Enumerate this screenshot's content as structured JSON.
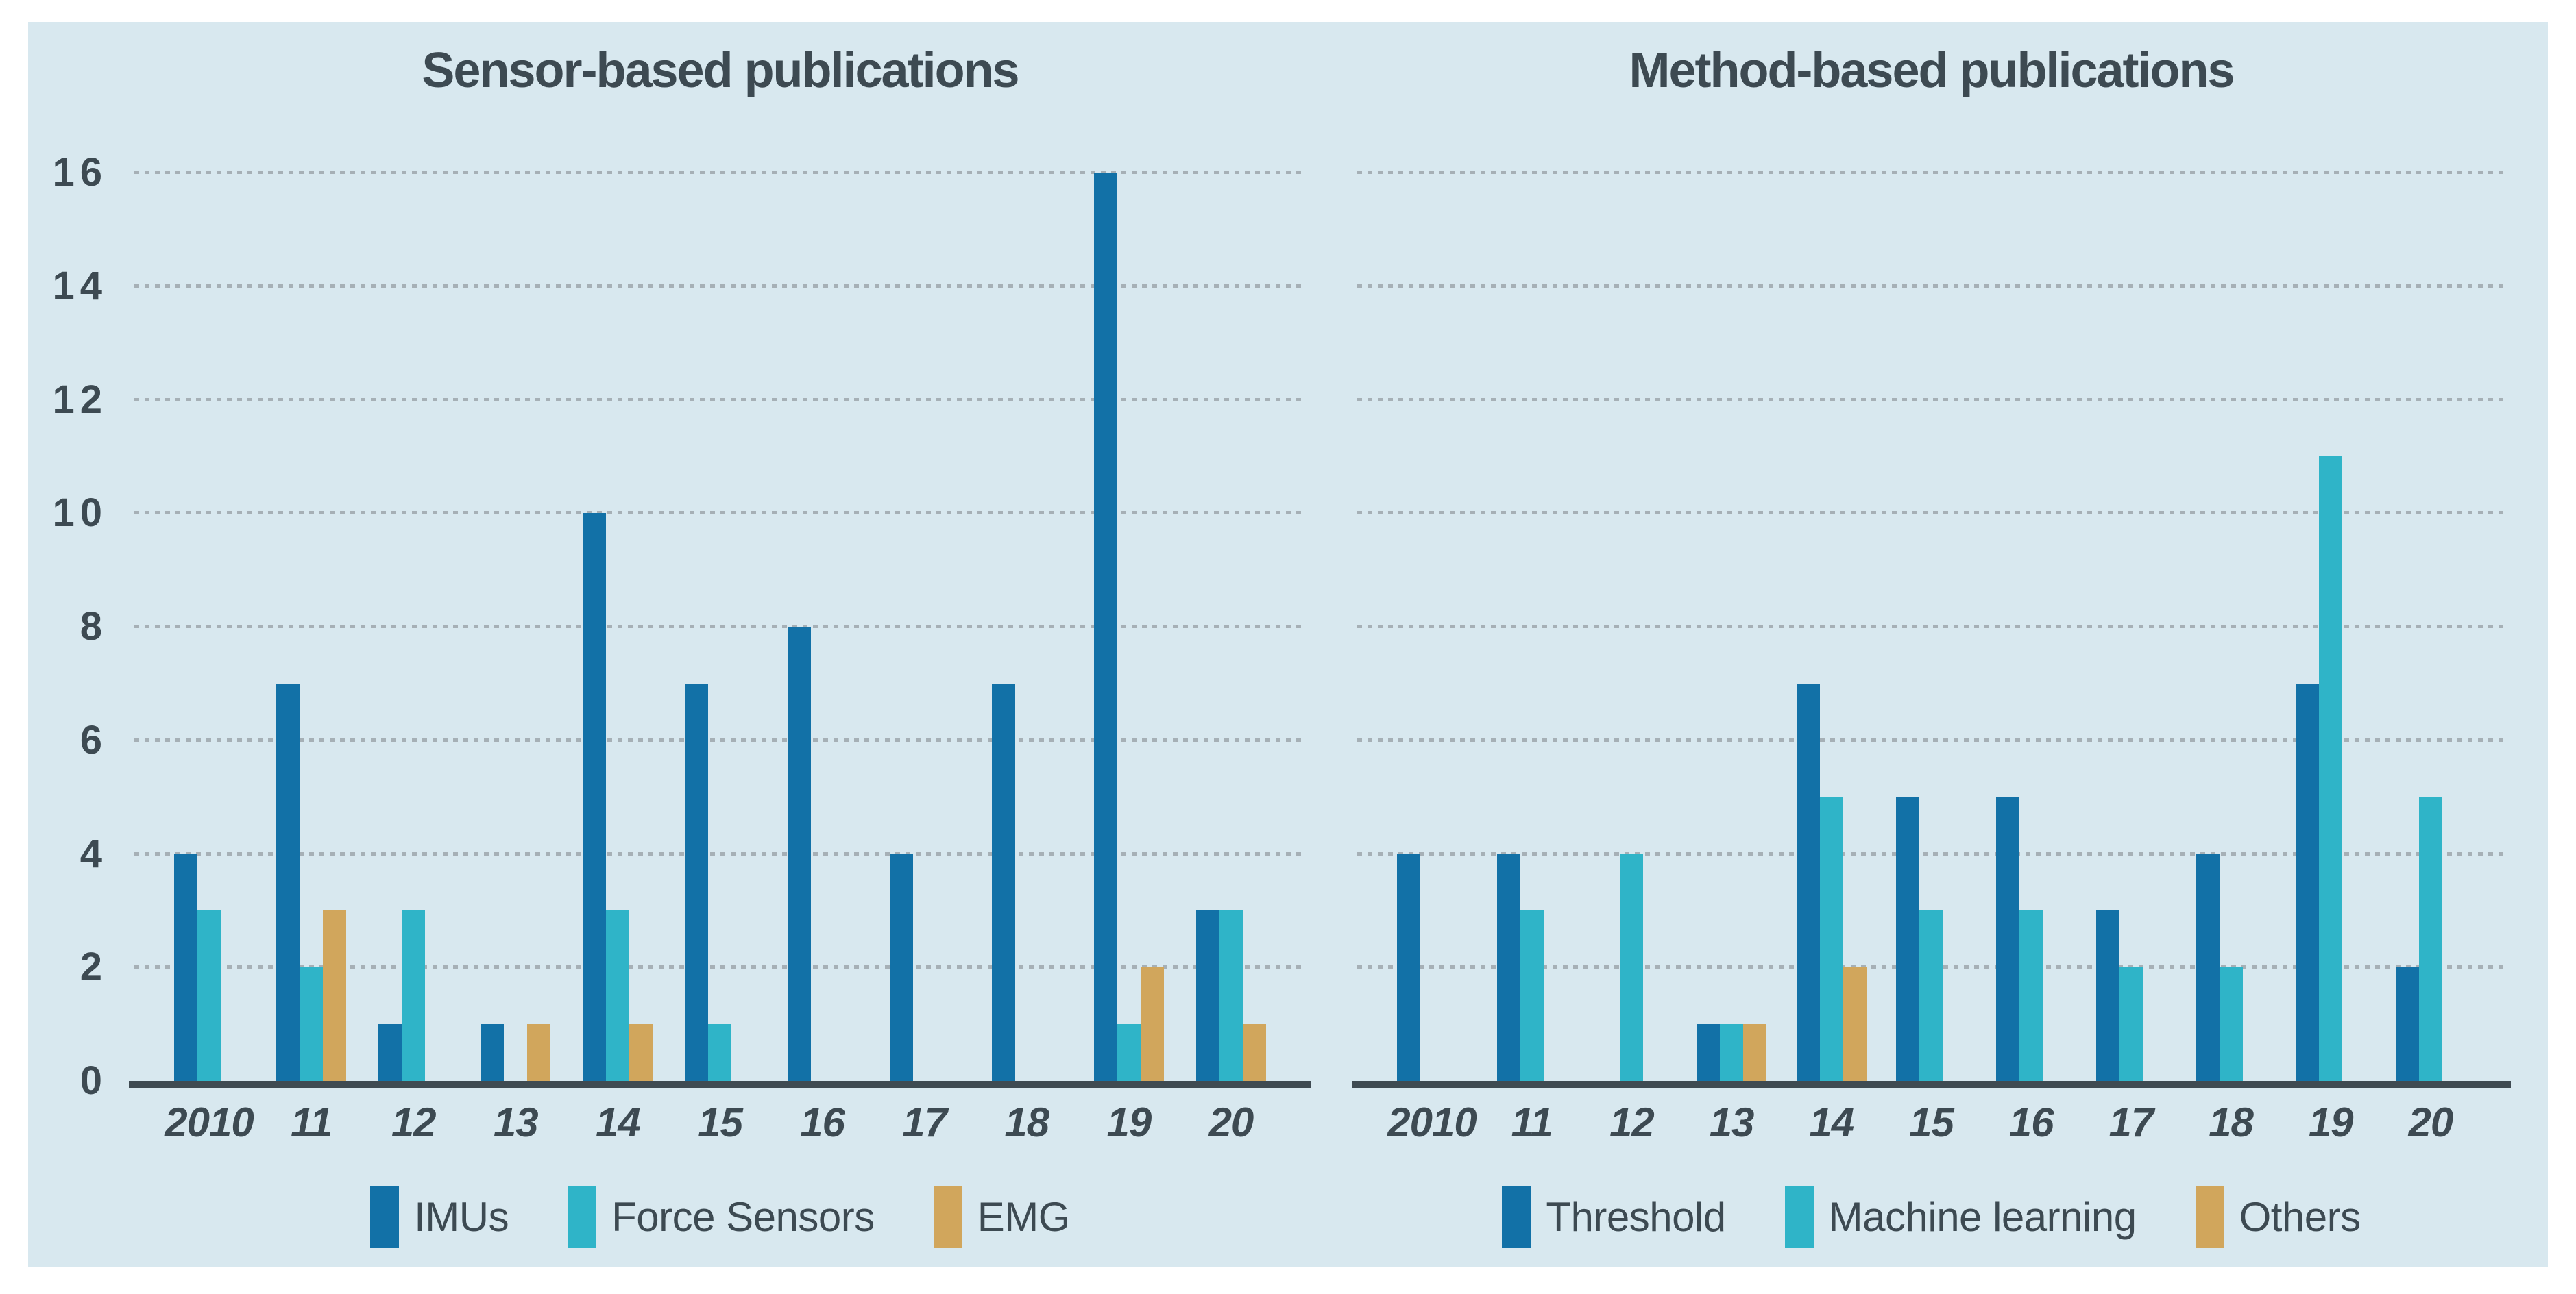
{
  "page": {
    "background": "#ffffff",
    "panel_background": "#d8e8ef",
    "text_color": "#3d4a52",
    "gridline_color": "#a6b0b6",
    "axis_color": "#3f4b52"
  },
  "chart_data": [
    {
      "type": "bar",
      "title": "Sensor-based publications",
      "categories": [
        "2010",
        "11",
        "12",
        "13",
        "14",
        "15",
        "16",
        "17",
        "18",
        "19",
        "20"
      ],
      "series": [
        {
          "name": "IMUs",
          "color": "#1271a7",
          "values": [
            4,
            7,
            1,
            1,
            10,
            7,
            8,
            4,
            7,
            16,
            3
          ]
        },
        {
          "name": "Force Sensors",
          "color": "#2fb4c8",
          "values": [
            3,
            2,
            3,
            0,
            3,
            1,
            0,
            0,
            0,
            1,
            3
          ]
        },
        {
          "name": "EMG",
          "color": "#d1a65c",
          "values": [
            0,
            3,
            0,
            1,
            1,
            0,
            0,
            0,
            0,
            2,
            1
          ]
        }
      ],
      "xlabel": "",
      "ylabel": "",
      "ylim": [
        0,
        16
      ],
      "y_ticks": [
        0,
        2,
        4,
        6,
        8,
        10,
        12,
        14,
        16
      ],
      "show_y_labels": true,
      "grid": "horizontal-dotted",
      "legend_position": "bottom"
    },
    {
      "type": "bar",
      "title": "Method-based publications",
      "categories": [
        "2010",
        "11",
        "12",
        "13",
        "14",
        "15",
        "16",
        "17",
        "18",
        "19",
        "20"
      ],
      "series": [
        {
          "name": "Threshold",
          "color": "#1271a7",
          "values": [
            4,
            4,
            0,
            1,
            7,
            5,
            5,
            3,
            4,
            7,
            2
          ]
        },
        {
          "name": "Machine learning",
          "color": "#2fb4c8",
          "values": [
            0,
            3,
            4,
            1,
            5,
            3,
            3,
            2,
            2,
            11,
            5
          ]
        },
        {
          "name": "Others",
          "color": "#d1a65c",
          "values": [
            0,
            0,
            0,
            1,
            2,
            0,
            0,
            0,
            0,
            0,
            0
          ]
        }
      ],
      "xlabel": "",
      "ylabel": "",
      "ylim": [
        0,
        16
      ],
      "y_ticks": [
        0,
        2,
        4,
        6,
        8,
        10,
        12,
        14,
        16
      ],
      "show_y_labels": false,
      "grid": "horizontal-dotted",
      "legend_position": "bottom"
    }
  ]
}
